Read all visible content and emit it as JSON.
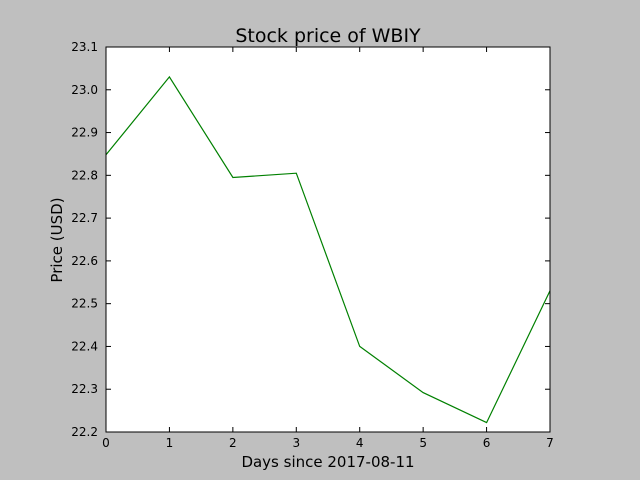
{
  "chart_data": {
    "type": "line",
    "title": "Stock price of WBIY",
    "xlabel": "Days since 2017-08-11",
    "ylabel": "Price (USD)",
    "xlim": [
      0,
      7
    ],
    "ylim": [
      22.2,
      23.1
    ],
    "x_ticks": [
      "0",
      "1",
      "2",
      "3",
      "4",
      "5",
      "6",
      "7"
    ],
    "y_ticks": [
      "22.2",
      "22.3",
      "22.4",
      "22.5",
      "22.6",
      "22.7",
      "22.8",
      "22.9",
      "23.0",
      "23.1"
    ],
    "grid": false,
    "series": [
      {
        "x": [
          0,
          1,
          2,
          3,
          4,
          5,
          6,
          7
        ],
        "values": [
          22.848,
          23.03,
          22.795,
          22.805,
          22.4,
          22.292,
          22.222,
          22.53
        ],
        "color": "#008000"
      }
    ]
  }
}
